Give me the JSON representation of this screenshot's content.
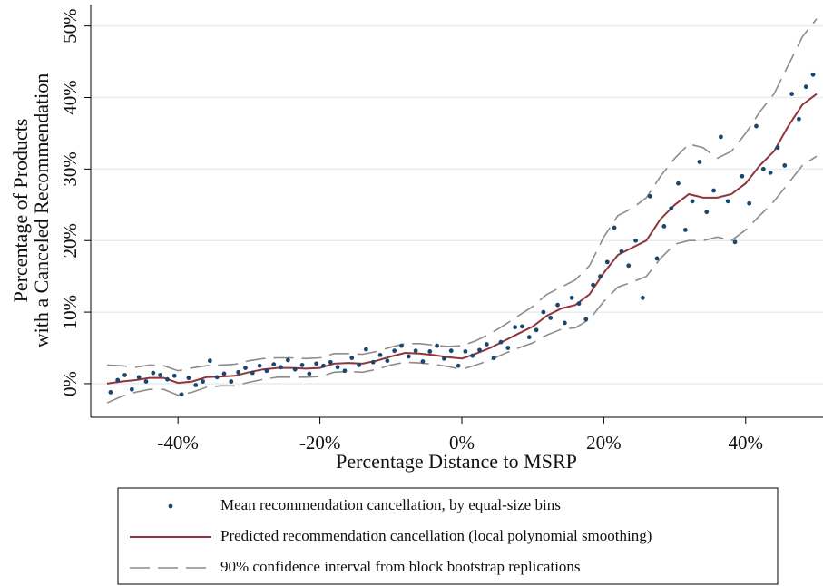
{
  "chart_data": {
    "type": "scatter",
    "xlabel": "Percentage Distance to MSRP",
    "ylabel": [
      "Percentage of Products",
      "with a Canceled Recommendation"
    ],
    "xlim": [
      -52.3,
      50.9
    ],
    "ylim": [
      -4.7,
      53
    ],
    "xticks": [
      {
        "value": -40,
        "label": "-40%"
      },
      {
        "value": -20,
        "label": "-20%"
      },
      {
        "value": 0,
        "label": "0%"
      },
      {
        "value": 20,
        "label": "20%"
      },
      {
        "value": 40,
        "label": "40%"
      }
    ],
    "yticks": [
      {
        "value": 0,
        "label": "0%"
      },
      {
        "value": 10,
        "label": "10%"
      },
      {
        "value": 20,
        "label": "20%"
      },
      {
        "value": 30,
        "label": "30%"
      },
      {
        "value": 40,
        "label": "40%"
      },
      {
        "value": 50,
        "label": "50%"
      }
    ],
    "grid": true,
    "legend_position": "bottom",
    "series": [
      {
        "name": "Mean recommendation cancellation, by equal-size bins",
        "kind": "points",
        "color": "#1a476f",
        "x": [
          -49.5,
          -48.5,
          -47.5,
          -46.5,
          -45.5,
          -44.5,
          -43.5,
          -42.5,
          -41.5,
          -40.5,
          -39.5,
          -38.5,
          -37.5,
          -36.5,
          -35.5,
          -34.5,
          -33.5,
          -32.5,
          -31.5,
          -30.5,
          -29.5,
          -28.5,
          -27.5,
          -26.5,
          -25.5,
          -24.5,
          -23.5,
          -22.5,
          -21.5,
          -20.5,
          -19.5,
          -18.5,
          -17.5,
          -16.5,
          -15.5,
          -14.5,
          -13.5,
          -12.5,
          -11.5,
          -10.5,
          -9.5,
          -8.5,
          -7.5,
          -6.5,
          -5.5,
          -4.5,
          -3.5,
          -2.5,
          -1.5,
          -0.5,
          0.5,
          1.5,
          2.5,
          3.5,
          4.5,
          5.5,
          6.5,
          7.5,
          8.5,
          9.5,
          10.5,
          11.5,
          12.5,
          13.5,
          14.5,
          15.5,
          16.5,
          17.5,
          18.5,
          19.5,
          20.5,
          21.5,
          22.5,
          23.5,
          24.5,
          25.5,
          26.5,
          27.5,
          28.5,
          29.5,
          30.5,
          31.5,
          32.5,
          33.5,
          34.5,
          35.5,
          36.5,
          37.5,
          38.5,
          39.5,
          40.5,
          41.5,
          42.5,
          43.5,
          44.5,
          45.5,
          46.5,
          47.5,
          48.5,
          49.5
        ],
        "values": [
          -1.2,
          0.5,
          1.2,
          -0.8,
          0.9,
          0.3,
          1.5,
          1.2,
          0.6,
          1.1,
          -1.5,
          0.8,
          -0.2,
          0.3,
          3.2,
          0.9,
          1.4,
          0.3,
          1.6,
          2.2,
          1.5,
          2.5,
          1.8,
          2.7,
          2.3,
          3.3,
          2.0,
          2.6,
          1.4,
          2.8,
          2.5,
          3.0,
          2.3,
          1.8,
          3.6,
          2.6,
          4.8,
          3.0,
          4.0,
          3.2,
          4.6,
          5.3,
          3.8,
          4.6,
          3.1,
          4.5,
          5.3,
          3.5,
          4.6,
          2.5,
          4.5,
          3.9,
          4.7,
          5.5,
          3.6,
          5.8,
          5.0,
          7.9,
          8.0,
          6.5,
          7.5,
          10.0,
          9.2,
          11.0,
          8.5,
          12.0,
          11.2,
          9.0,
          13.8,
          15.0,
          17.0,
          21.8,
          18.5,
          16.5,
          20.0,
          12.0,
          26.2,
          17.5,
          22.0,
          24.5,
          28.0,
          21.5,
          25.5,
          31.0,
          24.0,
          27.0,
          34.5,
          25.5,
          19.8,
          29.0,
          25.2,
          36.0,
          30.0,
          29.5,
          33.0,
          30.5,
          40.5,
          37.0,
          41.5,
          43.2
        ]
      },
      {
        "name": "Predicted recommendation cancellation (local polynomial smoothing)",
        "kind": "line",
        "color": "#90353b",
        "x": [
          -50,
          -48,
          -46,
          -44,
          -42,
          -40,
          -38,
          -36,
          -34,
          -32,
          -30,
          -28,
          -26,
          -24,
          -22,
          -20,
          -18,
          -16,
          -14,
          -12,
          -10,
          -8,
          -6,
          -4,
          -2,
          0,
          2,
          4,
          6,
          8,
          10,
          12,
          14,
          16,
          18,
          20,
          22,
          24,
          26,
          28,
          30,
          32,
          34,
          36,
          38,
          40,
          42,
          44,
          46,
          48,
          50
        ],
        "values": [
          0,
          0.3,
          0.5,
          0.8,
          0.8,
          0.1,
          0.3,
          0.9,
          1.0,
          1.1,
          1.6,
          2.0,
          2.2,
          2.2,
          2.1,
          2.2,
          2.8,
          2.9,
          2.8,
          3.2,
          3.8,
          4.3,
          4.2,
          4.0,
          3.7,
          3.5,
          4.2,
          5.0,
          6.0,
          7.0,
          8.0,
          9.5,
          10.5,
          11.0,
          12.5,
          15.5,
          18.0,
          19.0,
          20.0,
          23.0,
          25.0,
          26.5,
          26.0,
          26.0,
          26.5,
          28.0,
          30.5,
          32.5,
          36.0,
          39.0,
          40.5
        ]
      },
      {
        "name": "90% confidence interval from block bootstrap replications",
        "kind": "band",
        "color": "#8c8c8c",
        "x": [
          -50,
          -48,
          -46,
          -44,
          -42,
          -40,
          -38,
          -36,
          -34,
          -32,
          -30,
          -28,
          -26,
          -24,
          -22,
          -20,
          -18,
          -16,
          -14,
          -12,
          -10,
          -8,
          -6,
          -4,
          -2,
          0,
          2,
          4,
          6,
          8,
          10,
          12,
          14,
          16,
          18,
          20,
          22,
          24,
          26,
          28,
          30,
          32,
          34,
          36,
          38,
          40,
          42,
          44,
          46,
          48,
          50
        ],
        "upper": [
          2.6,
          2.5,
          2.3,
          2.6,
          2.5,
          1.8,
          2.2,
          2.5,
          2.6,
          2.7,
          3.2,
          3.5,
          3.6,
          3.6,
          3.5,
          3.6,
          4.2,
          4.2,
          4.1,
          4.5,
          5.1,
          5.6,
          5.6,
          5.4,
          5.2,
          5.3,
          6.0,
          7.0,
          8.2,
          9.5,
          10.8,
          12.5,
          13.5,
          14.5,
          16.5,
          20.5,
          23.5,
          24.5,
          26.0,
          29.0,
          31.5,
          33.5,
          33.0,
          31.5,
          32.5,
          35.0,
          38.0,
          40.5,
          44.5,
          48.5,
          51.0
        ],
        "lower": [
          -2.7,
          -1.8,
          -1.2,
          -0.8,
          -0.8,
          -1.6,
          -1.2,
          -0.5,
          -0.3,
          -0.3,
          0.2,
          0.6,
          0.9,
          0.9,
          0.9,
          1.0,
          1.6,
          1.7,
          1.6,
          2.0,
          2.6,
          3.0,
          2.9,
          2.7,
          2.4,
          2.0,
          2.6,
          3.3,
          4.2,
          5.0,
          5.7,
          6.8,
          7.6,
          7.8,
          9.0,
          11.5,
          13.5,
          14.2,
          15.0,
          17.5,
          19.5,
          20.0,
          20.0,
          20.5,
          20.0,
          21.5,
          23.5,
          25.5,
          28.0,
          30.5,
          31.8
        ]
      }
    ]
  }
}
